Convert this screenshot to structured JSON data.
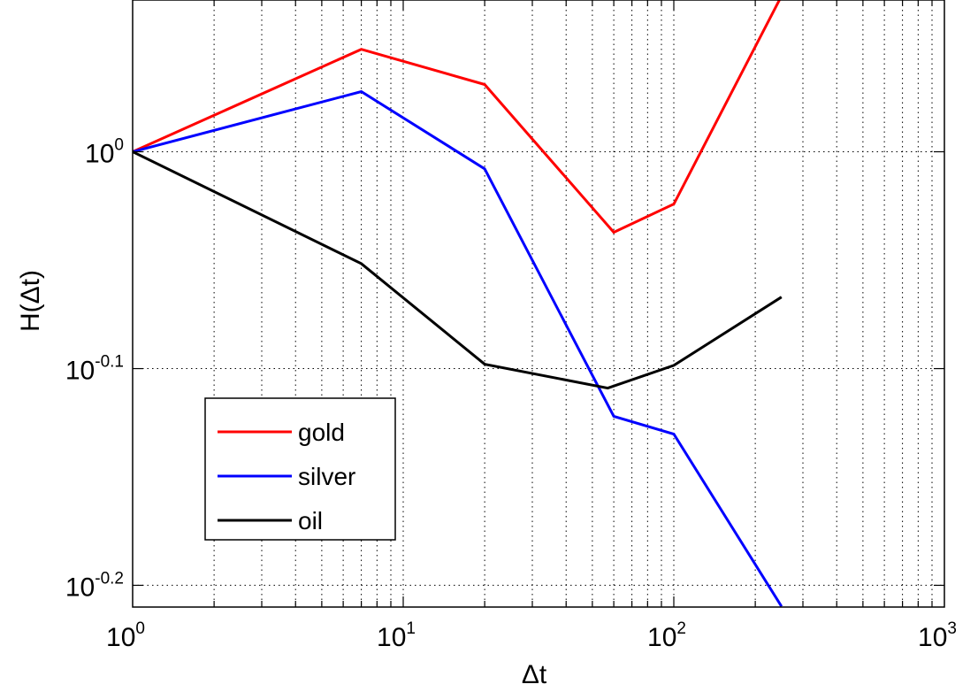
{
  "chart_data": {
    "type": "line",
    "title": "",
    "xlabel": "Δt",
    "ylabel": "H(Δt)",
    "xscale": "log",
    "yscale": "log",
    "xlim": [
      1,
      1000
    ],
    "ylim": [
      0.6166,
      1.1749
    ],
    "grid": true,
    "legend_position": "lower-left",
    "x_ticks": [
      {
        "value": 1,
        "base": "10",
        "exp": "0"
      },
      {
        "value": 10,
        "base": "10",
        "exp": "1"
      },
      {
        "value": 100,
        "base": "10",
        "exp": "2"
      },
      {
        "value": 1000,
        "base": "10",
        "exp": "3"
      }
    ],
    "y_ticks": [
      {
        "value": 1.0,
        "base": "10",
        "exp": "0"
      },
      {
        "value": 0.7943,
        "base": "10",
        "exp": "-0.1"
      },
      {
        "value": 0.631,
        "base": "10",
        "exp": "-0.2"
      }
    ],
    "series": [
      {
        "name": "gold",
        "color": "#ff0000",
        "x": [
          1,
          7,
          20,
          60,
          100,
          250
        ],
        "y": [
          1.0,
          1.115,
          1.074,
          0.918,
          0.946,
          1.18
        ]
      },
      {
        "name": "silver",
        "color": "#0000ff",
        "x": [
          1,
          7,
          20,
          60,
          100,
          250
        ],
        "y": [
          1.0,
          1.066,
          0.982,
          0.755,
          0.741,
          0.617
        ]
      },
      {
        "name": "oil",
        "color": "#000000",
        "x": [
          1,
          7,
          20,
          57,
          100,
          250
        ],
        "y": [
          1.0,
          0.888,
          0.798,
          0.778,
          0.797,
          0.857
        ]
      }
    ]
  }
}
